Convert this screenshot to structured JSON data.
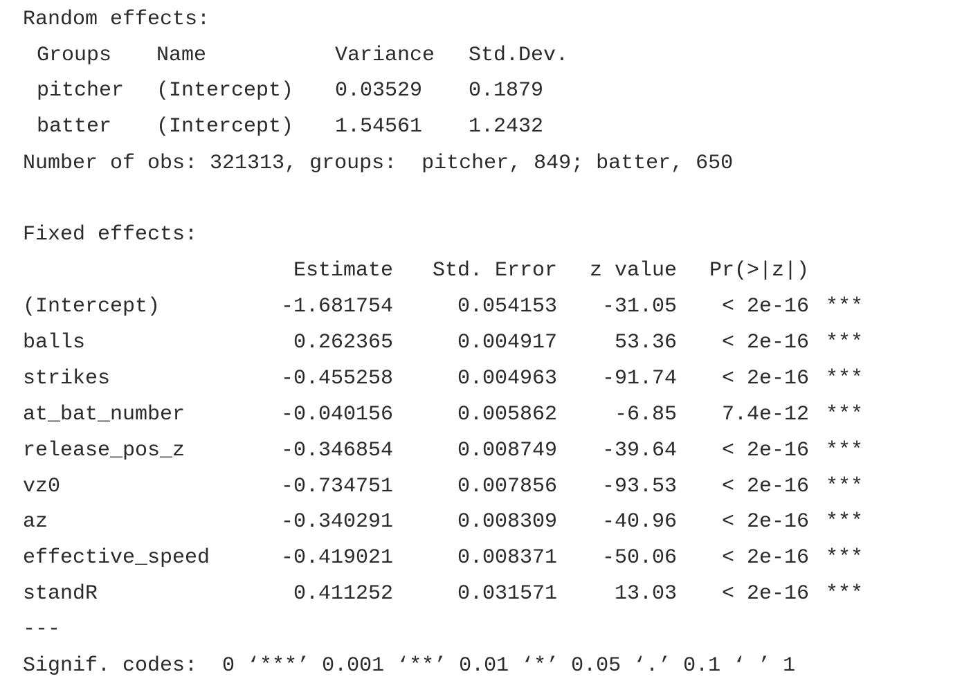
{
  "random_effects": {
    "heading": "Random effects:",
    "columns": {
      "groups": "Groups",
      "name": "Name",
      "variance": "Variance",
      "std_dev": "Std.Dev."
    },
    "rows": [
      {
        "group": "pitcher",
        "name": "(Intercept)",
        "variance": "0.03529",
        "std_dev": "0.1879"
      },
      {
        "group": "batter",
        "name": "(Intercept)",
        "variance": "1.54561",
        "std_dev": "1.2432"
      }
    ],
    "obs_line": "Number of obs: 321313, groups:  pitcher, 849; batter, 650"
  },
  "fixed_effects": {
    "heading": "Fixed effects:",
    "columns": {
      "estimate": "Estimate",
      "std_error": "Std. Error",
      "z_value": "z value",
      "p_value": "Pr(>|z|)"
    },
    "rows": [
      {
        "term": "(Intercept)",
        "estimate": "-1.681754",
        "std_error": "0.054153",
        "z_value": "-31.05",
        "p_value": "< 2e-16",
        "signif": "***"
      },
      {
        "term": "balls",
        "estimate": "0.262365",
        "std_error": "0.004917",
        "z_value": "53.36",
        "p_value": "< 2e-16",
        "signif": "***"
      },
      {
        "term": "strikes",
        "estimate": "-0.455258",
        "std_error": "0.004963",
        "z_value": "-91.74",
        "p_value": "< 2e-16",
        "signif": "***"
      },
      {
        "term": "at_bat_number",
        "estimate": "-0.040156",
        "std_error": "0.005862",
        "z_value": "-6.85",
        "p_value": "7.4e-12",
        "signif": "***"
      },
      {
        "term": "release_pos_z",
        "estimate": "-0.346854",
        "std_error": "0.008749",
        "z_value": "-39.64",
        "p_value": "< 2e-16",
        "signif": "***"
      },
      {
        "term": "vz0",
        "estimate": "-0.734751",
        "std_error": "0.007856",
        "z_value": "-93.53",
        "p_value": "< 2e-16",
        "signif": "***"
      },
      {
        "term": "az",
        "estimate": "-0.340291",
        "std_error": "0.008309",
        "z_value": "-40.96",
        "p_value": "< 2e-16",
        "signif": "***"
      },
      {
        "term": "effective_speed",
        "estimate": "-0.419021",
        "std_error": "0.008371",
        "z_value": "-50.06",
        "p_value": "< 2e-16",
        "signif": "***"
      },
      {
        "term": "standR",
        "estimate": "0.411252",
        "std_error": "0.031571",
        "z_value": "13.03",
        "p_value": "< 2e-16",
        "signif": "***"
      }
    ],
    "separator": "---",
    "signif_codes": "Signif. codes:  0 ‘***’ 0.001 ‘**’ 0.01 ‘*’ 0.05 ‘.’ 0.1 ‘ ’ 1"
  }
}
